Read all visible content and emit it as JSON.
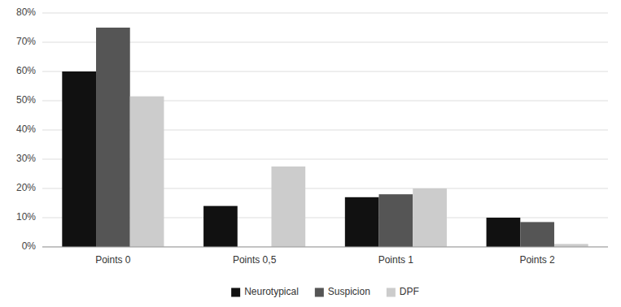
{
  "chart_data": {
    "type": "bar",
    "categories": [
      "Points 0",
      "Points 0,5",
      "Points 1",
      "Points 2"
    ],
    "series": [
      {
        "name": "Neurotypical",
        "color": "#111111",
        "values": [
          0.6,
          0.14,
          0.17,
          0.1
        ]
      },
      {
        "name": "Suspicion",
        "color": "#555555",
        "values": [
          0.75,
          0.0,
          0.18,
          0.085
        ]
      },
      {
        "name": "DPF",
        "color": "#cccccc",
        "values": [
          0.515,
          0.275,
          0.2,
          0.01
        ]
      }
    ],
    "ylim": [
      0,
      0.8
    ],
    "yticks": [
      {
        "value": 0.0,
        "label": "0%"
      },
      {
        "value": 0.1,
        "label": "10%"
      },
      {
        "value": 0.2,
        "label": "20%"
      },
      {
        "value": 0.3,
        "label": "30%"
      },
      {
        "value": 0.4,
        "label": "40%"
      },
      {
        "value": 0.5,
        "label": "50%"
      },
      {
        "value": 0.6,
        "label": "60%"
      },
      {
        "value": 0.7,
        "label": "70%"
      },
      {
        "value": 0.8,
        "label": "80%"
      }
    ],
    "grid": true,
    "legend": "bottom"
  }
}
